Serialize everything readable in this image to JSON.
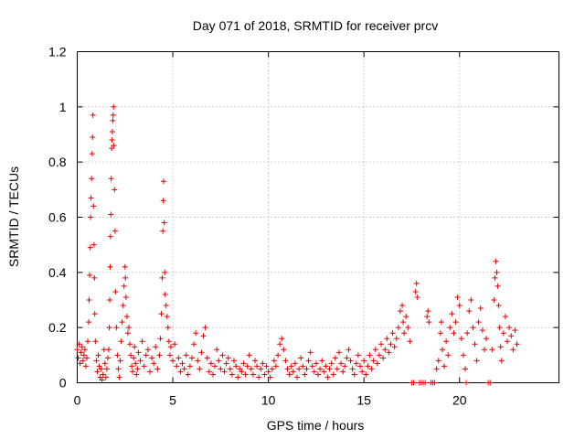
{
  "chart_data": {
    "type": "scatter",
    "title": "Day 071 of 2018, SRMTID for receiver prcv",
    "xlabel": "GPS time / hours",
    "ylabel": "SRMTID / TECUs",
    "xlim": [
      0,
      25.2
    ],
    "ylim": [
      0,
      1.2
    ],
    "xticks": [
      "0",
      "5",
      "10",
      "15",
      "20"
    ],
    "xtick_values": [
      0,
      5,
      10,
      15,
      20
    ],
    "yticks": [
      "0",
      "0.2",
      "0.4",
      "0.6",
      "0.8",
      "1",
      "1.2"
    ],
    "ytick_values": [
      0,
      0.2,
      0.4,
      0.6,
      0.8,
      1.0,
      1.2
    ],
    "grid": true,
    "marker": "+",
    "color": "#e00000",
    "series": [
      {
        "name": "prcv",
        "points": [
          [
            0.0,
            0.12
          ],
          [
            0.05,
            0.09
          ],
          [
            0.1,
            0.14
          ],
          [
            0.15,
            0.07
          ],
          [
            0.2,
            0.11
          ],
          [
            0.25,
            0.13
          ],
          [
            0.3,
            0.08
          ],
          [
            0.35,
            0.1
          ],
          [
            0.4,
            0.12
          ],
          [
            0.45,
            0.06
          ],
          [
            0.5,
            0.09
          ],
          [
            0.55,
            0.15
          ],
          [
            0.6,
            0.22
          ],
          [
            0.62,
            0.3
          ],
          [
            0.65,
            0.39
          ],
          [
            0.68,
            0.49
          ],
          [
            0.7,
            0.6
          ],
          [
            0.72,
            0.67
          ],
          [
            0.75,
            0.74
          ],
          [
            0.78,
            0.83
          ],
          [
            0.8,
            0.89
          ],
          [
            0.82,
            0.97
          ],
          [
            0.85,
            0.64
          ],
          [
            0.88,
            0.5
          ],
          [
            0.9,
            0.38
          ],
          [
            0.92,
            0.25
          ],
          [
            0.95,
            0.15
          ],
          [
            1.0,
            0.08
          ],
          [
            1.05,
            0.04
          ],
          [
            1.1,
            0.1
          ],
          [
            1.15,
            0.06
          ],
          [
            1.2,
            0.02
          ],
          [
            1.25,
            0.05
          ],
          [
            1.3,
            0.01
          ],
          [
            1.35,
            0.03
          ],
          [
            1.4,
            0.12
          ],
          [
            1.45,
            0.07
          ],
          [
            1.5,
            0.02
          ],
          [
            1.55,
            0.05
          ],
          [
            1.6,
            0.09
          ],
          [
            1.65,
            0.12
          ],
          [
            1.68,
            0.2
          ],
          [
            1.7,
            0.3
          ],
          [
            1.72,
            0.42
          ],
          [
            1.74,
            0.53
          ],
          [
            1.76,
            0.61
          ],
          [
            1.78,
            0.74
          ],
          [
            1.8,
            0.85
          ],
          [
            1.82,
            0.88
          ],
          [
            1.84,
            0.91
          ],
          [
            1.86,
            0.95
          ],
          [
            1.88,
            0.97
          ],
          [
            1.9,
            1.0
          ],
          [
            1.92,
            0.86
          ],
          [
            1.95,
            0.7
          ],
          [
            1.98,
            0.55
          ],
          [
            2.0,
            0.33
          ],
          [
            2.05,
            0.2
          ],
          [
            2.1,
            0.1
          ],
          [
            2.15,
            0.05
          ],
          [
            2.2,
            0.02
          ],
          [
            2.25,
            0.08
          ],
          [
            2.3,
            0.15
          ],
          [
            2.35,
            0.22
          ],
          [
            2.4,
            0.28
          ],
          [
            2.45,
            0.35
          ],
          [
            2.5,
            0.42
          ],
          [
            2.52,
            0.38
          ],
          [
            2.55,
            0.31
          ],
          [
            2.6,
            0.24
          ],
          [
            2.65,
            0.18
          ],
          [
            2.7,
            0.2
          ],
          [
            2.75,
            0.14
          ],
          [
            2.8,
            0.1
          ],
          [
            2.85,
            0.06
          ],
          [
            2.9,
            0.04
          ],
          [
            2.95,
            0.09
          ],
          [
            3.0,
            0.13
          ],
          [
            3.05,
            0.07
          ],
          [
            3.1,
            0.03
          ],
          [
            3.15,
            0.05
          ],
          [
            3.2,
            0.11
          ],
          [
            3.3,
            0.08
          ],
          [
            3.4,
            0.15
          ],
          [
            3.5,
            0.06
          ],
          [
            3.6,
            0.1
          ],
          [
            3.7,
            0.12
          ],
          [
            3.8,
            0.04
          ],
          [
            3.9,
            0.09
          ],
          [
            4.0,
            0.07
          ],
          [
            4.1,
            0.13
          ],
          [
            4.2,
            0.05
          ],
          [
            4.3,
            0.1
          ],
          [
            4.35,
            0.16
          ],
          [
            4.4,
            0.25
          ],
          [
            4.45,
            0.38
          ],
          [
            4.48,
            0.55
          ],
          [
            4.5,
            0.66
          ],
          [
            4.52,
            0.73
          ],
          [
            4.55,
            0.58
          ],
          [
            4.58,
            0.4
          ],
          [
            4.6,
            0.32
          ],
          [
            4.65,
            0.28
          ],
          [
            4.7,
            0.24
          ],
          [
            4.75,
            0.2
          ],
          [
            4.8,
            0.15
          ],
          [
            4.85,
            0.1
          ],
          [
            4.9,
            0.13
          ],
          [
            5.0,
            0.08
          ],
          [
            5.1,
            0.14
          ],
          [
            5.2,
            0.06
          ],
          [
            5.3,
            0.09
          ],
          [
            5.4,
            0.04
          ],
          [
            5.5,
            0.07
          ],
          [
            5.6,
            0.05
          ],
          [
            5.7,
            0.1
          ],
          [
            5.8,
            0.03
          ],
          [
            5.9,
            0.06
          ],
          [
            6.0,
            0.09
          ],
          [
            6.1,
            0.14
          ],
          [
            6.2,
            0.18
          ],
          [
            6.3,
            0.08
          ],
          [
            6.4,
            0.05
          ],
          [
            6.5,
            0.11
          ],
          [
            6.6,
            0.17
          ],
          [
            6.7,
            0.2
          ],
          [
            6.8,
            0.09
          ],
          [
            6.9,
            0.04
          ],
          [
            7.0,
            0.07
          ],
          [
            7.1,
            0.03
          ],
          [
            7.2,
            0.06
          ],
          [
            7.3,
            0.12
          ],
          [
            7.4,
            0.08
          ],
          [
            7.5,
            0.05
          ],
          [
            7.6,
            0.1
          ],
          [
            7.7,
            0.04
          ],
          [
            7.8,
            0.07
          ],
          [
            7.9,
            0.09
          ],
          [
            8.0,
            0.05
          ],
          [
            8.1,
            0.03
          ],
          [
            8.2,
            0.08
          ],
          [
            8.3,
            0.06
          ],
          [
            8.4,
            0.02
          ],
          [
            8.5,
            0.05
          ],
          [
            8.6,
            0.04
          ],
          [
            8.7,
            0.07
          ],
          [
            8.8,
            0.03
          ],
          [
            8.9,
            0.06
          ],
          [
            9.0,
            0.1
          ],
          [
            9.1,
            0.05
          ],
          [
            9.2,
            0.03
          ],
          [
            9.3,
            0.08
          ],
          [
            9.4,
            0.06
          ],
          [
            9.5,
            0.02
          ],
          [
            9.6,
            0.05
          ],
          [
            9.7,
            0.07
          ],
          [
            9.8,
            0.03
          ],
          [
            9.9,
            0.06
          ],
          [
            10.0,
            0.04
          ],
          [
            10.1,
            0.02
          ],
          [
            10.2,
            0.05
          ],
          [
            10.3,
            0.08
          ],
          [
            10.4,
            0.06
          ],
          [
            10.5,
            0.1
          ],
          [
            10.6,
            0.14
          ],
          [
            10.7,
            0.16
          ],
          [
            10.8,
            0.12
          ],
          [
            10.9,
            0.08
          ],
          [
            11.0,
            0.05
          ],
          [
            11.1,
            0.03
          ],
          [
            11.2,
            0.06
          ],
          [
            11.3,
            0.04
          ],
          [
            11.4,
            0.07
          ],
          [
            11.5,
            0.02
          ],
          [
            11.6,
            0.05
          ],
          [
            11.7,
            0.09
          ],
          [
            11.8,
            0.06
          ],
          [
            11.9,
            0.03
          ],
          [
            12.0,
            0.05
          ],
          [
            12.1,
            0.08
          ],
          [
            12.2,
            0.11
          ],
          [
            12.3,
            0.06
          ],
          [
            12.4,
            0.04
          ],
          [
            12.5,
            0.07
          ],
          [
            12.6,
            0.03
          ],
          [
            12.7,
            0.05
          ],
          [
            12.8,
            0.08
          ],
          [
            12.9,
            0.04
          ],
          [
            13.0,
            0.06
          ],
          [
            13.1,
            0.02
          ],
          [
            13.2,
            0.05
          ],
          [
            13.3,
            0.07
          ],
          [
            13.4,
            0.03
          ],
          [
            13.5,
            0.09
          ],
          [
            13.6,
            0.05
          ],
          [
            13.7,
            0.11
          ],
          [
            13.8,
            0.07
          ],
          [
            13.9,
            0.04
          ],
          [
            14.0,
            0.06
          ],
          [
            14.1,
            0.09
          ],
          [
            14.2,
            0.12
          ],
          [
            14.3,
            0.08
          ],
          [
            14.4,
            0.05
          ],
          [
            14.5,
            0.03
          ],
          [
            14.6,
            0.07
          ],
          [
            14.7,
            0.1
          ],
          [
            14.8,
            0.06
          ],
          [
            14.9,
            0.04
          ],
          [
            15.0,
            0.08
          ],
          [
            15.1,
            0.03
          ],
          [
            15.2,
            0.06
          ],
          [
            15.3,
            0.1
          ],
          [
            15.4,
            0.05
          ],
          [
            15.5,
            0.08
          ],
          [
            15.6,
            0.12
          ],
          [
            15.7,
            0.07
          ],
          [
            15.8,
            0.1
          ],
          [
            15.9,
            0.14
          ],
          [
            16.0,
            0.09
          ],
          [
            16.1,
            0.12
          ],
          [
            16.2,
            0.16
          ],
          [
            16.3,
            0.11
          ],
          [
            16.4,
            0.14
          ],
          [
            16.5,
            0.18
          ],
          [
            16.6,
            0.13
          ],
          [
            16.7,
            0.16
          ],
          [
            16.8,
            0.2
          ],
          [
            16.9,
            0.26
          ],
          [
            17.0,
            0.28
          ],
          [
            17.05,
            0.22
          ],
          [
            17.1,
            0.18
          ],
          [
            17.2,
            0.24
          ],
          [
            17.3,
            0.2
          ],
          [
            17.4,
            0.15
          ],
          [
            17.5,
            0.0
          ],
          [
            17.6,
            0.0
          ],
          [
            17.7,
            0.33
          ],
          [
            17.75,
            0.36
          ],
          [
            17.8,
            0.31
          ],
          [
            17.9,
            0.0
          ],
          [
            18.0,
            0.0
          ],
          [
            18.1,
            0.0
          ],
          [
            18.2,
            0.0
          ],
          [
            18.3,
            0.24
          ],
          [
            18.35,
            0.26
          ],
          [
            18.4,
            0.22
          ],
          [
            18.5,
            0.0
          ],
          [
            18.6,
            0.0
          ],
          [
            18.7,
            0.0
          ],
          [
            18.8,
            0.05
          ],
          [
            18.9,
            0.08
          ],
          [
            19.0,
            0.18
          ],
          [
            19.05,
            0.22
          ],
          [
            19.1,
            0.12
          ],
          [
            19.2,
            0.06
          ],
          [
            19.3,
            0.15
          ],
          [
            19.4,
            0.1
          ],
          [
            19.5,
            0.2
          ],
          [
            19.6,
            0.25
          ],
          [
            19.7,
            0.18
          ],
          [
            19.8,
            0.22
          ],
          [
            19.9,
            0.31
          ],
          [
            20.0,
            0.28
          ],
          [
            20.1,
            0.16
          ],
          [
            20.2,
            0.1
          ],
          [
            20.3,
            0.05
          ],
          [
            20.35,
            0.0
          ],
          [
            20.4,
            0.18
          ],
          [
            20.5,
            0.26
          ],
          [
            20.6,
            0.3
          ],
          [
            20.7,
            0.2
          ],
          [
            20.8,
            0.14
          ],
          [
            20.9,
            0.08
          ],
          [
            21.0,
            0.22
          ],
          [
            21.1,
            0.27
          ],
          [
            21.2,
            0.19
          ],
          [
            21.3,
            0.12
          ],
          [
            21.4,
            0.16
          ],
          [
            21.5,
            0.0
          ],
          [
            21.6,
            0.0
          ],
          [
            21.7,
            0.12
          ],
          [
            21.8,
            0.3
          ],
          [
            21.85,
            0.38
          ],
          [
            21.9,
            0.44
          ],
          [
            21.95,
            0.4
          ],
          [
            22.0,
            0.35
          ],
          [
            22.05,
            0.28
          ],
          [
            22.1,
            0.2
          ],
          [
            22.15,
            0.13
          ],
          [
            22.2,
            0.08
          ],
          [
            22.3,
            0.18
          ],
          [
            22.4,
            0.24
          ],
          [
            22.5,
            0.15
          ],
          [
            22.6,
            0.2
          ],
          [
            22.7,
            0.17
          ],
          [
            22.8,
            0.12
          ],
          [
            22.9,
            0.19
          ],
          [
            23.0,
            0.14
          ]
        ]
      }
    ]
  }
}
